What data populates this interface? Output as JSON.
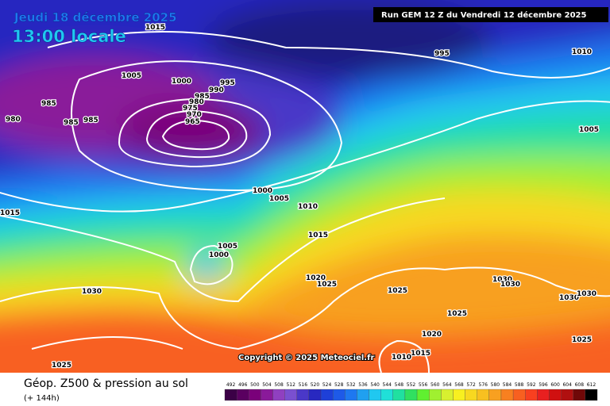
{
  "header": {
    "date": "Jeudi 18 décembre 2025",
    "time": "13:00 locale",
    "run": "Run GEM 12 Z du Vendredi 12 décembre 2025"
  },
  "copyright": "Copyright © 2025 Meteociel.fr",
  "footer": {
    "title": "Géop. Z500 & pression au sol",
    "lead": "(+ 144h)"
  },
  "isobar_labels": [
    "1015",
    "1005",
    "1000",
    "995",
    "990",
    "985",
    "980",
    "975",
    "970",
    "965",
    "985",
    "980",
    "985",
    "985",
    "995",
    "1010",
    "1005",
    "1000",
    "1005",
    "1010",
    "1015",
    "1015",
    "1005",
    "1000",
    "1020",
    "1025",
    "1030",
    "1025",
    "1030",
    "1030",
    "1030",
    "1030",
    "1025",
    "1020",
    "1015",
    "1010",
    "1025",
    "1025"
  ],
  "legend": {
    "labels": [
      "492",
      "496",
      "500",
      "504",
      "508",
      "512",
      "516",
      "520",
      "524",
      "528",
      "532",
      "536",
      "540",
      "544",
      "548",
      "552",
      "556",
      "560",
      "564",
      "568",
      "572",
      "576",
      "580",
      "584",
      "588",
      "592",
      "596",
      "600",
      "604",
      "608",
      "612"
    ],
    "colors": [
      "#3b0046",
      "#5a0060",
      "#7a007a",
      "#8a1a9a",
      "#9040c0",
      "#7a50d0",
      "#4a38c8",
      "#2828c0",
      "#1e40d8",
      "#1e5ae8",
      "#1e78f0",
      "#20a0f0",
      "#20c8f0",
      "#20e0d8",
      "#20e0a0",
      "#30e060",
      "#60f030",
      "#a0f030",
      "#d8f030",
      "#f8f020",
      "#f8d820",
      "#f8c020",
      "#f8a020",
      "#f88020",
      "#f86020",
      "#f84020",
      "#e82020",
      "#d01010",
      "#b01010",
      "#700808",
      "#000000"
    ]
  }
}
